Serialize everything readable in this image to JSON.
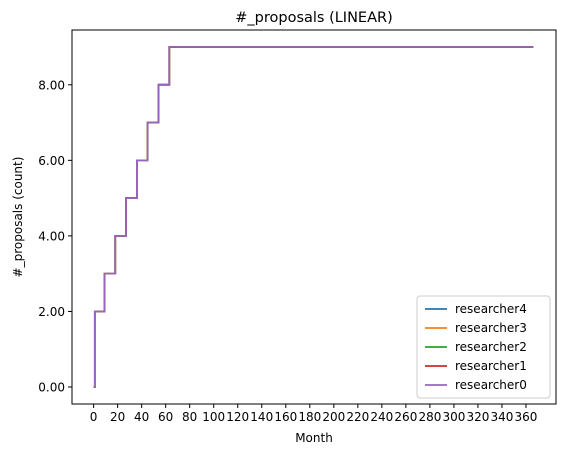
{
  "chart_data": {
    "type": "line",
    "title": "#_proposals (LINEAR)",
    "xlabel": "Month",
    "ylabel": "#_proposals (count)",
    "xlim": [
      -18,
      385
    ],
    "ylim": [
      -0.45,
      9.45
    ],
    "x_ticks": [
      0,
      20,
      40,
      60,
      80,
      100,
      120,
      140,
      160,
      180,
      200,
      220,
      240,
      260,
      280,
      300,
      320,
      340,
      360
    ],
    "x_tick_labels": [
      "0",
      "20",
      "40",
      "60",
      "80",
      "100",
      "120",
      "140",
      "160",
      "180",
      "200",
      "220",
      "240",
      "260",
      "280",
      "300",
      "320",
      "340",
      "360"
    ],
    "y_ticks": [
      0,
      2,
      4,
      6,
      8
    ],
    "y_tick_labels": [
      "0.00",
      "2.00",
      "4.00",
      "6.00",
      "8.00"
    ],
    "grid": false,
    "legend_position": "lower right",
    "step_style": "post",
    "x": [
      0,
      1,
      9,
      18,
      27,
      36,
      45,
      54,
      63,
      366
    ],
    "series": [
      {
        "name": "researcher4",
        "color": "#1f77b4",
        "values": [
          0,
          2,
          3,
          4,
          5,
          6,
          7,
          8,
          9,
          9
        ]
      },
      {
        "name": "researcher3",
        "color": "#ff7f0e",
        "values": [
          0,
          2,
          3,
          4,
          5,
          6,
          7,
          8,
          9,
          9
        ]
      },
      {
        "name": "researcher2",
        "color": "#2ca02c",
        "values": [
          0,
          2,
          3,
          4,
          5,
          6,
          7,
          8,
          9,
          9
        ]
      },
      {
        "name": "researcher1",
        "color": "#d62728",
        "values": [
          0,
          2,
          3,
          4,
          5,
          6,
          7,
          8,
          9,
          9
        ]
      },
      {
        "name": "researcher0",
        "color": "#9467bd",
        "values": [
          0,
          2,
          3,
          4,
          5,
          6,
          7,
          8,
          9,
          9
        ]
      }
    ]
  }
}
